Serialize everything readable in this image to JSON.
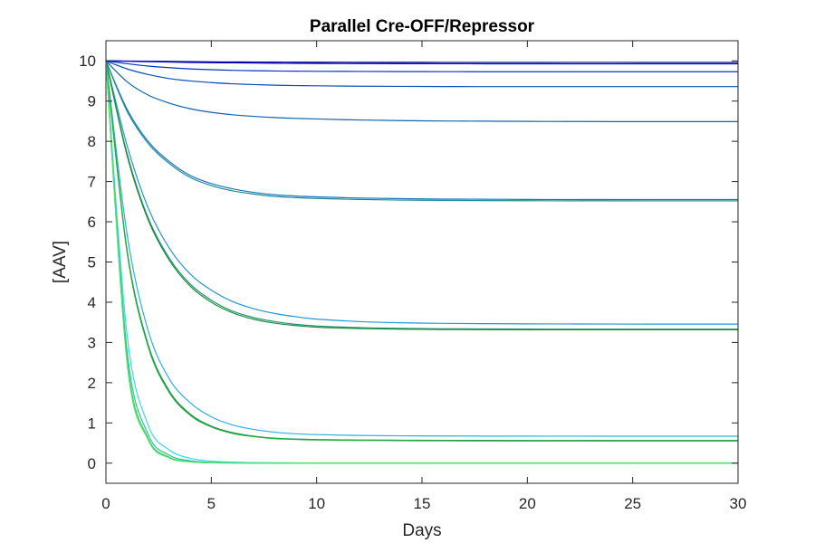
{
  "chart_data": {
    "type": "line",
    "title": "Parallel Cre-OFF/Repressor",
    "xlabel": "Days",
    "ylabel": "[AAV]",
    "xlim": [
      0,
      30
    ],
    "ylim": [
      -0.5,
      10.5
    ],
    "xticks": [
      0,
      5,
      10,
      15,
      20,
      25,
      30
    ],
    "yticks": [
      0,
      1,
      2,
      3,
      4,
      5,
      6,
      7,
      8,
      9,
      10
    ],
    "grid": false,
    "x": [
      0,
      1,
      2,
      3,
      4,
      5,
      6,
      7,
      8,
      9,
      10,
      12,
      14,
      16,
      18,
      20,
      22,
      24,
      26,
      28,
      30
    ],
    "series": [
      {
        "color": "#00008B",
        "values": [
          10,
          9.995,
          9.99,
          9.985,
          9.98,
          9.975,
          9.972,
          9.97,
          9.968,
          9.966,
          9.965,
          9.964,
          9.963,
          9.962,
          9.962,
          9.961,
          9.961,
          9.961,
          9.96,
          9.96,
          9.96
        ]
      },
      {
        "color": "#0000C8",
        "values": [
          10,
          9.99,
          9.98,
          9.97,
          9.96,
          9.955,
          9.95,
          9.945,
          9.94,
          9.938,
          9.935,
          9.932,
          9.93,
          9.928,
          9.927,
          9.926,
          9.925,
          9.925,
          9.925,
          9.925,
          9.925
        ]
      },
      {
        "color": "#0A30C0",
        "values": [
          10,
          9.93,
          9.87,
          9.83,
          9.8,
          9.78,
          9.765,
          9.755,
          9.748,
          9.743,
          9.74,
          9.736,
          9.733,
          9.731,
          9.73,
          9.73,
          9.729,
          9.729,
          9.729,
          9.729,
          9.729
        ]
      },
      {
        "color": "#0A4FB8",
        "values": [
          10,
          9.8,
          9.66,
          9.56,
          9.5,
          9.46,
          9.43,
          9.41,
          9.395,
          9.385,
          9.38,
          9.37,
          9.365,
          9.362,
          9.36,
          9.36,
          9.36,
          9.36,
          9.36,
          9.36,
          9.36
        ]
      },
      {
        "color": "#1164B0",
        "values": [
          10,
          9.48,
          9.15,
          8.95,
          8.81,
          8.72,
          8.66,
          8.62,
          8.59,
          8.57,
          8.555,
          8.53,
          8.515,
          8.505,
          8.5,
          8.495,
          8.493,
          8.49,
          8.49,
          8.49,
          8.49
        ]
      },
      {
        "color": "#1A78C0",
        "values": [
          10,
          8.8,
          8.0,
          7.5,
          7.15,
          6.95,
          6.82,
          6.73,
          6.67,
          6.64,
          6.62,
          6.59,
          6.575,
          6.565,
          6.56,
          6.555,
          6.553,
          6.552,
          6.552,
          6.552,
          6.552
        ]
      },
      {
        "color": "#1D8A9A",
        "values": [
          10,
          8.75,
          7.95,
          7.45,
          7.1,
          6.9,
          6.77,
          6.69,
          6.63,
          6.6,
          6.58,
          6.555,
          6.54,
          6.532,
          6.527,
          6.524,
          6.522,
          6.521,
          6.52,
          6.52,
          6.52
        ]
      },
      {
        "color": "#2196D8",
        "values": [
          10,
          7.9,
          6.35,
          5.35,
          4.7,
          4.3,
          4.02,
          3.84,
          3.72,
          3.64,
          3.58,
          3.52,
          3.49,
          3.475,
          3.467,
          3.462,
          3.46,
          3.458,
          3.457,
          3.457,
          3.457
        ]
      },
      {
        "color": "#1F8F7A",
        "values": [
          10,
          7.7,
          6.1,
          5.1,
          4.45,
          4.05,
          3.78,
          3.62,
          3.52,
          3.45,
          3.41,
          3.37,
          3.35,
          3.34,
          3.335,
          3.332,
          3.33,
          3.33,
          3.33,
          3.33,
          3.33
        ]
      },
      {
        "color": "#1E8E3A",
        "values": [
          10,
          7.65,
          6.05,
          5.05,
          4.4,
          4.0,
          3.74,
          3.58,
          3.48,
          3.42,
          3.38,
          3.345,
          3.33,
          3.322,
          3.318,
          3.316,
          3.315,
          3.315,
          3.315,
          3.315,
          3.315
        ]
      },
      {
        "color": "#2CB0E0",
        "values": [
          10,
          5.7,
          3.3,
          2.1,
          1.5,
          1.15,
          0.95,
          0.84,
          0.77,
          0.73,
          0.71,
          0.69,
          0.68,
          0.676,
          0.673,
          0.672,
          0.671,
          0.67,
          0.67,
          0.67,
          0.67
        ]
      },
      {
        "color": "#1B8A56",
        "values": [
          10,
          5.3,
          2.95,
          1.8,
          1.22,
          0.92,
          0.76,
          0.67,
          0.62,
          0.6,
          0.585,
          0.575,
          0.57,
          0.567,
          0.565,
          0.564,
          0.563,
          0.563,
          0.563,
          0.563,
          0.563
        ]
      },
      {
        "color": "#22B23A",
        "values": [
          10,
          5.25,
          2.9,
          1.76,
          1.19,
          0.9,
          0.74,
          0.66,
          0.61,
          0.59,
          0.575,
          0.565,
          0.56,
          0.556,
          0.553,
          0.552,
          0.551,
          0.55,
          0.55,
          0.55,
          0.55
        ]
      },
      {
        "color": "#3DD6F0",
        "values": [
          10,
          3.2,
          0.95,
          0.33,
          0.12,
          0.05,
          0.025,
          0.015,
          0.01,
          0.007,
          0.005,
          0.003,
          0.002,
          0.001,
          0.001,
          0,
          0,
          0,
          0,
          0,
          0
        ]
      },
      {
        "color": "#2CC496",
        "values": [
          10,
          2.8,
          0.72,
          0.2,
          0.06,
          0.02,
          0.008,
          0.003,
          0.001,
          0,
          0,
          0,
          0,
          0,
          0,
          0,
          0,
          0,
          0,
          0,
          0
        ]
      },
      {
        "color": "#2FD35A",
        "values": [
          10,
          2.6,
          0.62,
          0.15,
          0.04,
          0.012,
          0.004,
          0.001,
          0,
          0,
          0,
          0,
          0,
          0,
          0,
          0,
          0,
          0,
          0,
          0,
          0
        ]
      },
      {
        "color": "#55E070",
        "values": [
          10,
          2.5,
          0.58,
          0.13,
          0.03,
          0.008,
          0.002,
          0,
          0,
          0,
          0,
          0,
          0,
          0,
          0,
          0,
          0,
          0,
          0,
          0,
          0
        ]
      }
    ]
  }
}
